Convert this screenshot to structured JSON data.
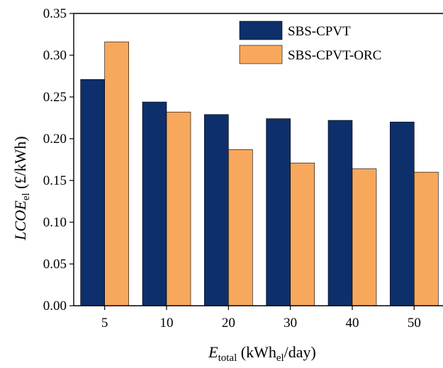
{
  "chart_data": {
    "type": "bar",
    "categories": [
      "5",
      "10",
      "20",
      "30",
      "40",
      "50"
    ],
    "series": [
      {
        "name": "SBS-CPVT",
        "color": "#0d2f6b",
        "values": [
          0.271,
          0.244,
          0.229,
          0.224,
          0.222,
          0.22
        ]
      },
      {
        "name": "SBS-CPVT-ORC",
        "color": "#f8a85c",
        "values": [
          0.316,
          0.232,
          0.187,
          0.171,
          0.164,
          0.16
        ]
      }
    ],
    "xlabel": {
      "main": "E",
      "sub": "total",
      "rest": " (kWh",
      "sub2": "el",
      "rest2": "/day)"
    },
    "ylabel": {
      "main": "LCOE",
      "sub": "el",
      "rest": " (£/kWh)"
    },
    "ylim": [
      0,
      0.35
    ],
    "yticks": [
      "0.00",
      "0.05",
      "0.10",
      "0.15",
      "0.20",
      "0.25",
      "0.30",
      "0.35"
    ],
    "grid": false,
    "legend_position": "top-right"
  }
}
